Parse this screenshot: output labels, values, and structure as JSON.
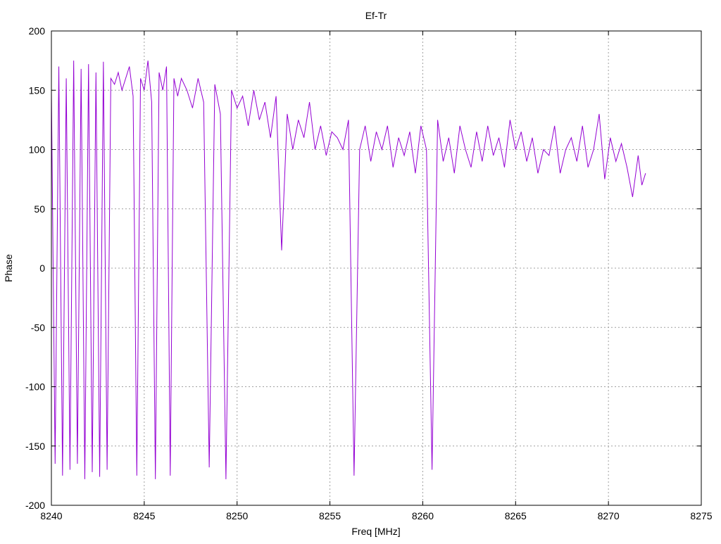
{
  "chart_data": {
    "type": "line",
    "title": "Ef-Tr",
    "xlabel": "Freq [MHz]",
    "ylabel": "Phase",
    "xlim": [
      8240,
      8275
    ],
    "ylim": [
      -200,
      200
    ],
    "xticks": [
      8240,
      8245,
      8250,
      8255,
      8260,
      8265,
      8270,
      8275
    ],
    "yticks": [
      -200,
      -150,
      -100,
      -50,
      0,
      50,
      100,
      150,
      200
    ],
    "grid": true,
    "colors": {
      "series": "#9400d3",
      "grid": "#a0a0a0",
      "axis": "#000000"
    },
    "series": [
      {
        "x": [
          8240.0,
          8240.2,
          8240.4,
          8240.6,
          8240.8,
          8241.0,
          8241.2,
          8241.4,
          8241.6,
          8241.8,
          8242.0,
          8242.2,
          8242.4,
          8242.6,
          8242.8,
          8243.0,
          8243.2,
          8243.4,
          8243.6,
          8243.8,
          8244.0,
          8244.2,
          8244.4,
          8244.6,
          8244.8,
          8245.0,
          8245.2,
          8245.4,
          8245.6,
          8245.8,
          8246.0,
          8246.2,
          8246.4,
          8246.6,
          8246.8,
          8247.0,
          8247.3,
          8247.6,
          8247.9,
          8248.2,
          8248.5,
          8248.8,
          8249.1,
          8249.4,
          8249.7,
          8250.0,
          8250.3,
          8250.6,
          8250.9,
          8251.2,
          8251.5,
          8251.8,
          8252.1,
          8252.4,
          8252.7,
          8253.0,
          8253.3,
          8253.6,
          8253.9,
          8254.2,
          8254.5,
          8254.8,
          8255.1,
          8255.4,
          8255.7,
          8256.0,
          8256.3,
          8256.6,
          8256.9,
          8257.2,
          8257.5,
          8257.8,
          8258.1,
          8258.4,
          8258.7,
          8259.0,
          8259.3,
          8259.6,
          8259.9,
          8260.2,
          8260.5,
          8260.8,
          8261.1,
          8261.4,
          8261.7,
          8262.0,
          8262.3,
          8262.6,
          8262.9,
          8263.2,
          8263.5,
          8263.8,
          8264.1,
          8264.4,
          8264.7,
          8265.0,
          8265.3,
          8265.6,
          8265.9,
          8266.2,
          8266.5,
          8266.8,
          8267.1,
          8267.4,
          8267.7,
          8268.0,
          8268.3,
          8268.6,
          8268.9,
          8269.2,
          8269.5,
          8269.8,
          8270.1,
          8270.4,
          8270.7,
          8271.0,
          8271.3,
          8271.6,
          8271.8,
          8272.0
        ],
        "y": [
          150,
          -165,
          170,
          -175,
          160,
          -170,
          175,
          -165,
          168,
          -178,
          172,
          -172,
          165,
          -176,
          174,
          -170,
          160,
          155,
          165,
          150,
          160,
          170,
          145,
          -175,
          160,
          150,
          175,
          140,
          -178,
          165,
          150,
          170,
          -175,
          160,
          145,
          160,
          150,
          135,
          160,
          140,
          -168,
          155,
          130,
          -178,
          150,
          135,
          145,
          120,
          150,
          125,
          140,
          110,
          145,
          15,
          130,
          100,
          125,
          110,
          140,
          100,
          120,
          95,
          115,
          110,
          100,
          125,
          -175,
          100,
          120,
          90,
          115,
          100,
          120,
          85,
          110,
          95,
          115,
          80,
          120,
          100,
          -170,
          125,
          90,
          110,
          80,
          120,
          100,
          85,
          115,
          90,
          120,
          95,
          110,
          85,
          125,
          100,
          115,
          90,
          110,
          80,
          100,
          95,
          120,
          80,
          100,
          110,
          90,
          120,
          85,
          100,
          130,
          75,
          110,
          90,
          105,
          85,
          60,
          95,
          70,
          80
        ]
      }
    ]
  }
}
